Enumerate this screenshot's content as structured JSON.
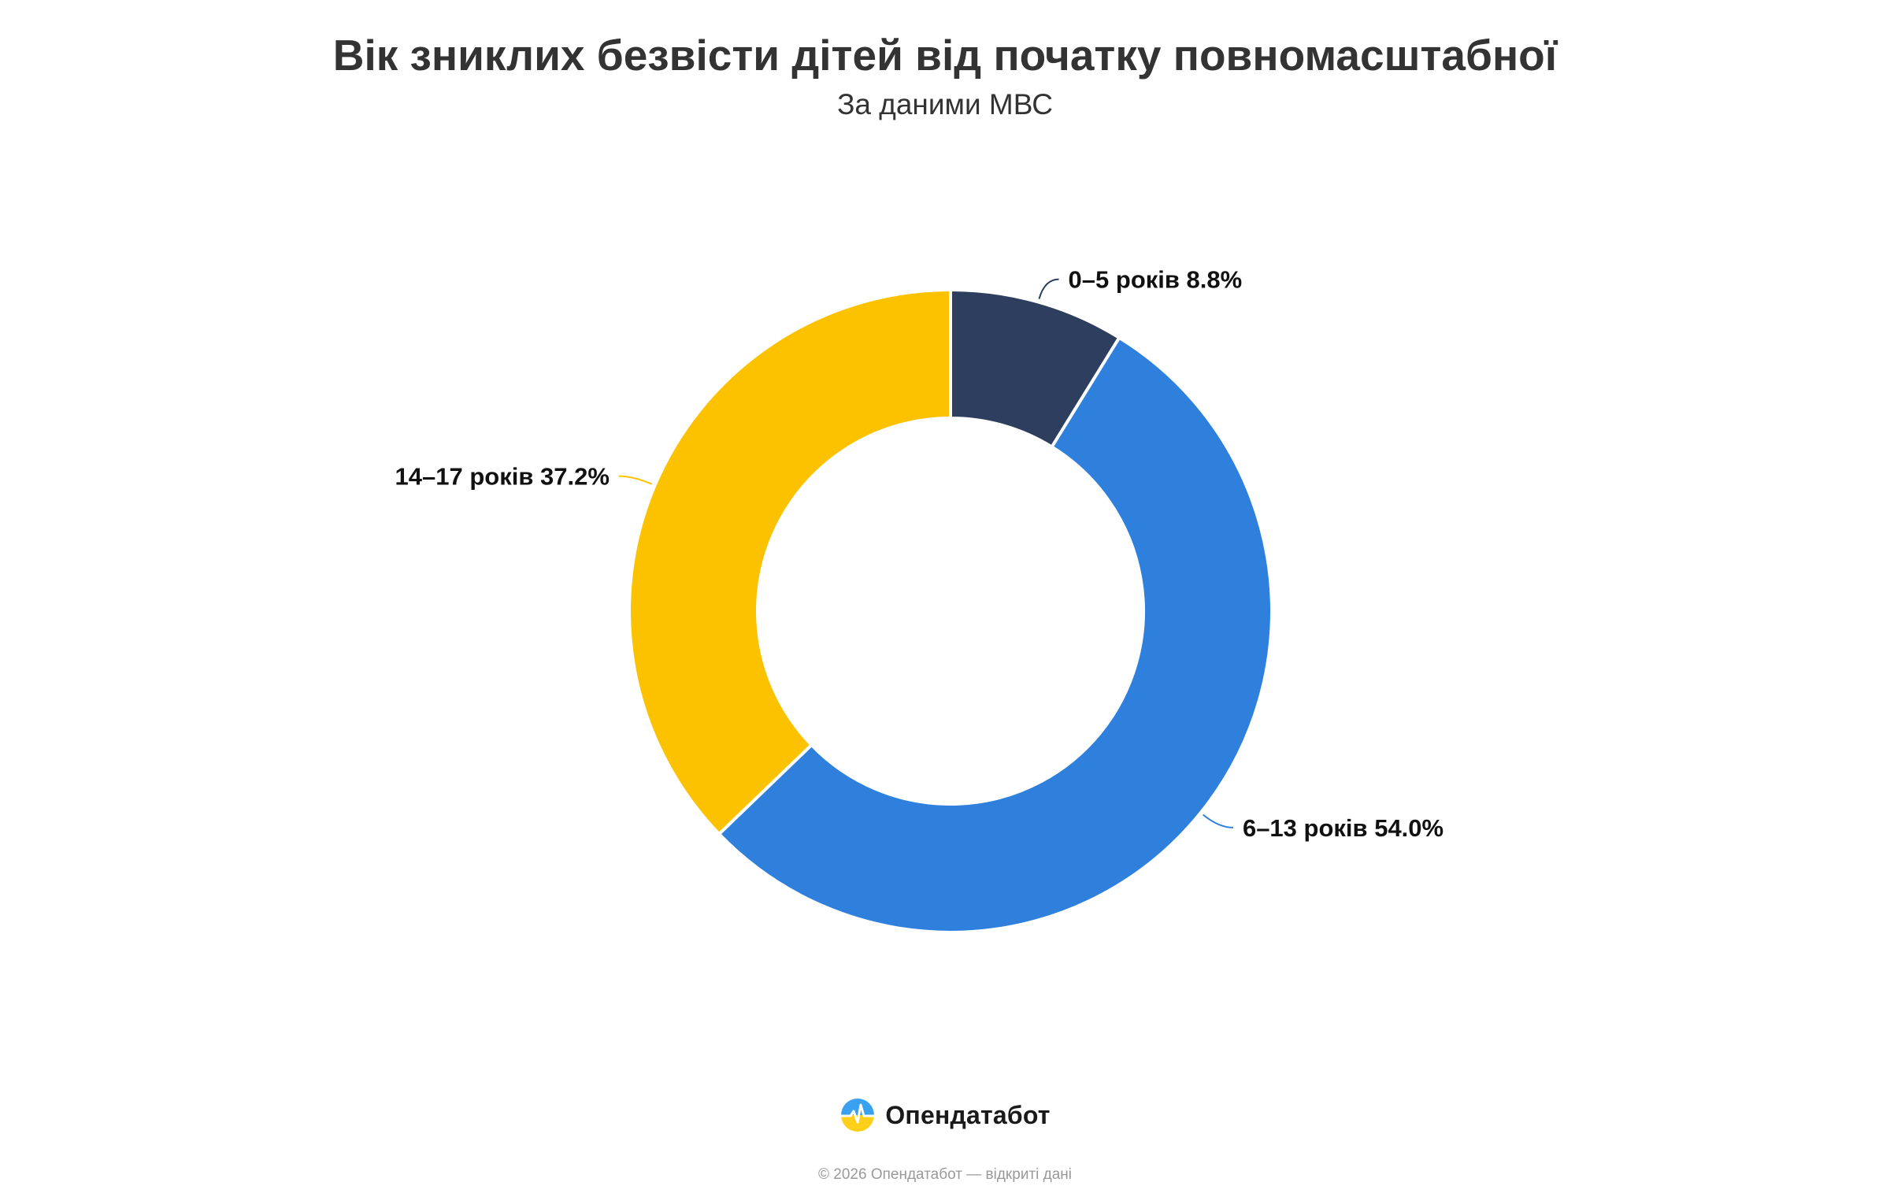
{
  "title": "Вік зниклих безвісти дітей від початку повномасштабної",
  "subtitle": "За даними МВС",
  "chart_data": {
    "type": "pie",
    "variant": "donut",
    "slices": [
      {
        "label": "0–5 років",
        "value": 8.8,
        "display": "8.8%",
        "color": "#2e3e5e"
      },
      {
        "label": "6–13 років",
        "value": 54.0,
        "display": "54.0%",
        "color": "#2e80dc"
      },
      {
        "label": "14–17 років",
        "value": 37.2,
        "display": "37.2%",
        "color": "#fcc200"
      }
    ],
    "start": "top",
    "direction": "clockwise",
    "labels": "outside-with-leader-lines"
  },
  "brand": {
    "name": "Опендатабот",
    "logo_icon": "opendatabot-logo-icon"
  },
  "footer": {
    "copyright": "© 2026 Опендатабот — відкриті дані"
  }
}
